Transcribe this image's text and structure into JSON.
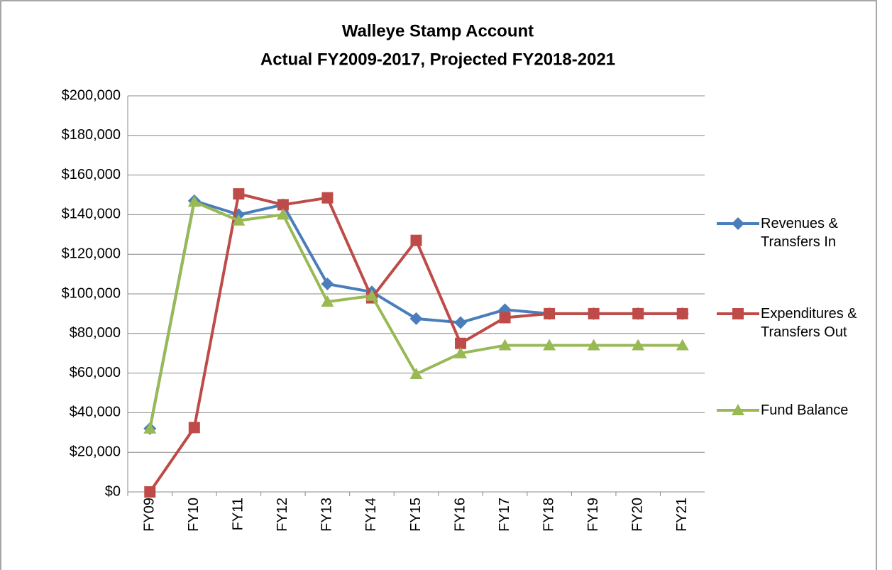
{
  "chart_data": {
    "type": "line",
    "title": "Walleye Stamp Account",
    "subtitle": "Actual FY2009-2017, Projected FY2018-2021",
    "categories": [
      "FY09",
      "FY10",
      "FY11",
      "FY12",
      "FY13",
      "FY14",
      "FY15",
      "FY16",
      "FY17",
      "FY18",
      "FY19",
      "FY20",
      "FY21"
    ],
    "series": [
      {
        "name": "Revenues & Transfers In",
        "color": "#4a7ebb",
        "marker": "diamond",
        "values": [
          32000,
          147000,
          140000,
          145000,
          105000,
          101000,
          87500,
          85500,
          92000,
          90000,
          90000,
          90000,
          90000
        ]
      },
      {
        "name": "Expenditures & Transfers Out",
        "color": "#be4b48",
        "marker": "square",
        "values": [
          0,
          32500,
          150500,
          145000,
          148500,
          98000,
          127000,
          75000,
          88000,
          90000,
          90000,
          90000,
          90000
        ]
      },
      {
        "name": "Fund Balance",
        "color": "#98b954",
        "marker": "triangle",
        "values": [
          32000,
          146500,
          137000,
          140000,
          96000,
          99000,
          59500,
          70000,
          74000,
          74000,
          74000,
          74000,
          74000
        ]
      }
    ],
    "ylim": [
      0,
      200000
    ],
    "yticks": [
      {
        "value": 0,
        "label": "$0"
      },
      {
        "value": 20000,
        "label": "$20,000"
      },
      {
        "value": 40000,
        "label": "$40,000"
      },
      {
        "value": 60000,
        "label": "$60,000"
      },
      {
        "value": 80000,
        "label": "$80,000"
      },
      {
        "value": 100000,
        "label": "$100,000"
      },
      {
        "value": 120000,
        "label": "$120,000"
      },
      {
        "value": 140000,
        "label": "$140,000"
      },
      {
        "value": 160000,
        "label": "$160,000"
      },
      {
        "value": 180000,
        "label": "$180,000"
      },
      {
        "value": 200000,
        "label": "$200,000"
      }
    ],
    "grid": true,
    "legend": "right"
  }
}
